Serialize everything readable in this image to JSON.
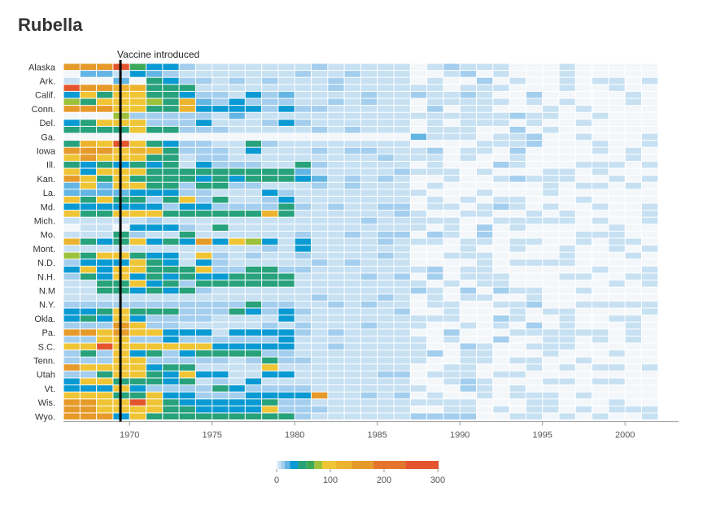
{
  "title": "Rubella",
  "chart_data": {
    "type": "heatmap",
    "title": "Rubella",
    "x_range": [
      1966,
      2002
    ],
    "x_ticks": [
      1970,
      1975,
      1980,
      1985,
      1990,
      1995,
      2000
    ],
    "x_tick_labels": [
      "1970",
      "1975",
      "1980",
      "1985",
      "1990",
      "1995",
      "2000"
    ],
    "rows": [
      "Alaska",
      "",
      "Ark.",
      "",
      "Calif.",
      "",
      "Conn.",
      "",
      "Del.",
      "",
      "Ga.",
      "",
      "Iowa",
      "",
      "Ill.",
      "",
      "Kan.",
      "",
      "La.",
      "",
      "Md.",
      "",
      "Mich.",
      "",
      "Mo.",
      "",
      "Mont.",
      "",
      "N.D.",
      "",
      "N.H.",
      "",
      "N.M",
      "",
      "N.Y.",
      "",
      "Okla.",
      "",
      "Pa.",
      "",
      "S.C.",
      "",
      "Tenn.",
      "",
      "Utah",
      "",
      "Vt.",
      "",
      "Wis.",
      "",
      "Wyo."
    ],
    "y_labels": [
      "Alaska",
      "Ark.",
      "Calif.",
      "Conn.",
      "Del.",
      "Ga.",
      "Iowa",
      "Ill.",
      "Kan.",
      "La.",
      "Md.",
      "Mich.",
      "Mo.",
      "Mont.",
      "N.D.",
      "N.H.",
      "N.M",
      "N.Y.",
      "Okla.",
      "Pa.",
      "S.C.",
      "Tenn.",
      "Utah",
      "Vt.",
      "Wis.",
      "Wyo."
    ],
    "annotation": {
      "year": 1969,
      "label": "Vaccine introduced"
    },
    "legend": {
      "ticks": [
        0,
        100,
        200,
        300
      ],
      "tick_labels": [
        "0",
        "100",
        "200",
        "300"
      ],
      "stops": [
        {
          "value": 0,
          "color": "#e8f2fa"
        },
        {
          "value": 3,
          "color": "#c7e1f3"
        },
        {
          "value": 8,
          "color": "#a3ceee"
        },
        {
          "value": 15,
          "color": "#63b5e3"
        },
        {
          "value": 25,
          "color": "#0a9ad3"
        },
        {
          "value": 40,
          "color": "#27a27b"
        },
        {
          "value": 55,
          "color": "#3ba85a"
        },
        {
          "value": 70,
          "color": "#9cc13a"
        },
        {
          "value": 85,
          "color": "#f0c535"
        },
        {
          "value": 110,
          "color": "#ecb32f"
        },
        {
          "value": 140,
          "color": "#e59a2a"
        },
        {
          "value": 180,
          "color": "#e3762c"
        },
        {
          "value": 240,
          "color": "#e4552f"
        },
        {
          "value": 300,
          "color": "#d9402b"
        }
      ]
    },
    "colors": {
      "empty": "#f4f7fa",
      "grid_line": "#ffffff",
      "vaccine_line": "#000000"
    },
    "row_profiles": [
      [
        140,
        160,
        170,
        250,
        60,
        25,
        25,
        12
      ],
      [
        0,
        20,
        15,
        5,
        25,
        20,
        8,
        5,
        5
      ],
      [
        5,
        0,
        0,
        20,
        0,
        40,
        30,
        8,
        8,
        3,
        10
      ],
      [
        280,
        140,
        160,
        130,
        130,
        40,
        40,
        40,
        5,
        3,
        3
      ],
      [
        25,
        100,
        50,
        90,
        100,
        50,
        40,
        30,
        8,
        8,
        5,
        25,
        8,
        20,
        3,
        3,
        3
      ],
      [
        80,
        40,
        90,
        100,
        100,
        70,
        50,
        110,
        15,
        10,
        25,
        8,
        8,
        8
      ],
      [
        140,
        140,
        140,
        100,
        90,
        40,
        40,
        110,
        25,
        25,
        25,
        25,
        8,
        25
      ],
      [
        0,
        0,
        0,
        70,
        10,
        8,
        8,
        8,
        8,
        5,
        15,
        3
      ],
      [
        25,
        40,
        100,
        100,
        90,
        8,
        8,
        8,
        25,
        5,
        5,
        5,
        8,
        25,
        8,
        5
      ],
      [
        40,
        40,
        40,
        40,
        100,
        40,
        40,
        8,
        8,
        8,
        5,
        3
      ],
      [
        0,
        0,
        0,
        0,
        0,
        0,
        0,
        0,
        0,
        0,
        0,
        0,
        0,
        0,
        0,
        0,
        0,
        0,
        0,
        0,
        0,
        15
      ],
      [
        40,
        120,
        100,
        240,
        90,
        40,
        30,
        8,
        8,
        5,
        5,
        45,
        8,
        5,
        3,
        3
      ],
      [
        140,
        140,
        140,
        100,
        130,
        130,
        40,
        8,
        8,
        8,
        5,
        25,
        5,
        5
      ],
      [
        100,
        140,
        100,
        100,
        100,
        40,
        40,
        5,
        8,
        8,
        3,
        3,
        5,
        3,
        5
      ],
      [
        40,
        25,
        40,
        25,
        40,
        25,
        40,
        5,
        25,
        8,
        8,
        8,
        5,
        5,
        40
      ],
      [
        100,
        25,
        100,
        90,
        100,
        40,
        40,
        40,
        40,
        40,
        40,
        40,
        40,
        40,
        15
      ],
      [
        140,
        100,
        40,
        100,
        40,
        40,
        40,
        40,
        30,
        45,
        30,
        40,
        40,
        40,
        30,
        15
      ],
      [
        20,
        100,
        20,
        100,
        100,
        40,
        40,
        8,
        40,
        40,
        8,
        8,
        5,
        3
      ],
      [
        20,
        20,
        20,
        20,
        25,
        25,
        25,
        8,
        8,
        5,
        5,
        5,
        25,
        8
      ],
      [
        100,
        40,
        100,
        40,
        40,
        8,
        40,
        90,
        8,
        40,
        5,
        3,
        8,
        25
      ],
      [
        25,
        25,
        25,
        25,
        25,
        25,
        8,
        25,
        25,
        8,
        8,
        8,
        8,
        40
      ],
      [
        100,
        40,
        40,
        100,
        100,
        100,
        40,
        40,
        40,
        40,
        40,
        40,
        110,
        40,
        5,
        5
      ],
      [
        3,
        3,
        5,
        3,
        5,
        8,
        5,
        5,
        5,
        5,
        5,
        5,
        5,
        5,
        5,
        5
      ],
      [
        0,
        3,
        5,
        0,
        25,
        25,
        25,
        8,
        5,
        40,
        5,
        5,
        5,
        5
      ],
      [
        3,
        3,
        3,
        40,
        8,
        5,
        5,
        40,
        5,
        5,
        5,
        5,
        5,
        5
      ],
      [
        110,
        40,
        25,
        40,
        100,
        25,
        40,
        25,
        140,
        25,
        90,
        70,
        25,
        5,
        25
      ],
      [
        5,
        5,
        5,
        5,
        5,
        5,
        5,
        5,
        5,
        5,
        5,
        5,
        8,
        5,
        25
      ],
      [
        70,
        40,
        100,
        100,
        40,
        25,
        25,
        5,
        100,
        8,
        5,
        8,
        5,
        5
      ],
      [
        8,
        25,
        25,
        25,
        100,
        40,
        25,
        5,
        25,
        8,
        5,
        5,
        5,
        5
      ],
      [
        25,
        100,
        25,
        100,
        100,
        40,
        40,
        40,
        100,
        8,
        8,
        40,
        40,
        8,
        8,
        5
      ],
      [
        8,
        40,
        25,
        100,
        25,
        40,
        25,
        40,
        25,
        25,
        40,
        40,
        40,
        40,
        5
      ],
      [
        5,
        5,
        40,
        40,
        100,
        25,
        40,
        8,
        40,
        40,
        40,
        40,
        40,
        40,
        5
      ],
      [
        5,
        5,
        40,
        40,
        25,
        40,
        25,
        40,
        8,
        5,
        5,
        5,
        5,
        5
      ],
      [
        3,
        3,
        3,
        3,
        3,
        3,
        3,
        3,
        3,
        3,
        3,
        3,
        3,
        3
      ],
      [
        8,
        8,
        8,
        8,
        8,
        8,
        8,
        8,
        8,
        8,
        8,
        40,
        8,
        8
      ],
      [
        25,
        25,
        40,
        100,
        40,
        40,
        40,
        8,
        8,
        8,
        40,
        25,
        8,
        25
      ],
      [
        25,
        40,
        25,
        100,
        25,
        8,
        8,
        8,
        8,
        5,
        5,
        5,
        5,
        25
      ],
      [
        8,
        8,
        8,
        140,
        100,
        8,
        8,
        5,
        5,
        5,
        5,
        5,
        8,
        5
      ],
      [
        140,
        140,
        100,
        140,
        100,
        100,
        25,
        25,
        25,
        5,
        25,
        25,
        25,
        25
      ],
      [
        8,
        8,
        100,
        100,
        8,
        8,
        25,
        8,
        8,
        8,
        8,
        8,
        8,
        25
      ],
      [
        100,
        100,
        240,
        100,
        90,
        100,
        100,
        100,
        90,
        25,
        25,
        25,
        25,
        25
      ],
      [
        8,
        40,
        8,
        100,
        25,
        40,
        8,
        25,
        40,
        40,
        40,
        40,
        8,
        8
      ],
      [
        8,
        8,
        8,
        100,
        100,
        8,
        8,
        8,
        8,
        8,
        5,
        8,
        40,
        8
      ],
      [
        140,
        100,
        100,
        100,
        100,
        25,
        40,
        40,
        5,
        5,
        5,
        5,
        100,
        5
      ],
      [
        8,
        8,
        40,
        100,
        100,
        40,
        25,
        100,
        25,
        25,
        5,
        5,
        25,
        25
      ],
      [
        25,
        100,
        100,
        40,
        40,
        40,
        25,
        40,
        5,
        8,
        5,
        25,
        5,
        5
      ],
      [
        25,
        25,
        25,
        90,
        25,
        8,
        8,
        8,
        8,
        40,
        25,
        8,
        8,
        8
      ],
      [
        100,
        100,
        100,
        40,
        40,
        100,
        25,
        25,
        8,
        8,
        8,
        25,
        25,
        25,
        25,
        140
      ],
      [
        140,
        140,
        100,
        100,
        240,
        100,
        40,
        25,
        25,
        25,
        25,
        25,
        40,
        8,
        8
      ],
      [
        140,
        140,
        100,
        100,
        90,
        90,
        40,
        40,
        25,
        25,
        25,
        25,
        100,
        8,
        8
      ],
      [
        140,
        140,
        140,
        25,
        100,
        40,
        40,
        40,
        40,
        40,
        40,
        40,
        40,
        40,
        8
      ],
      [
        140,
        8,
        8,
        8,
        100,
        100,
        240,
        8,
        8,
        8,
        8,
        8
      ]
    ]
  }
}
